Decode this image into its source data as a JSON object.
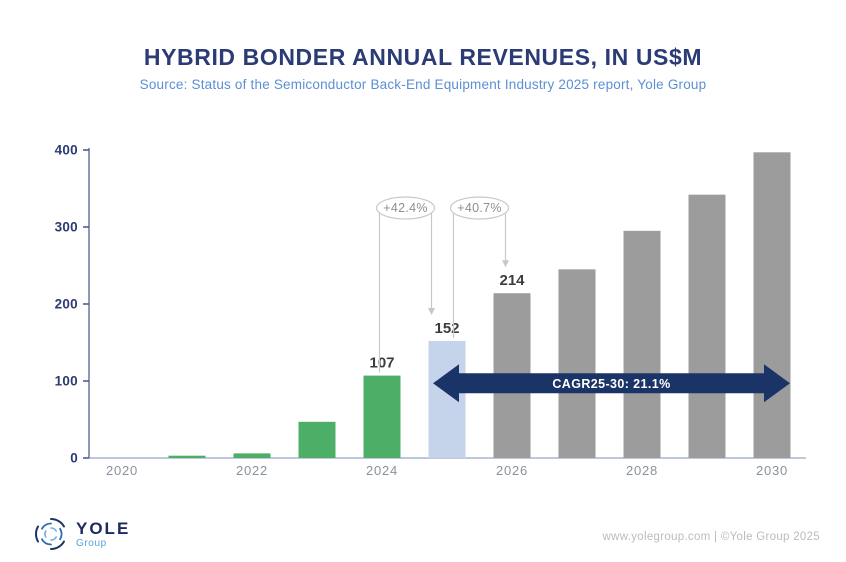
{
  "header": {
    "title": "HYBRID BONDER ANNUAL REVENUES, IN US$M",
    "subtitle": "Source: Status of the Semiconductor Back-End Equipment Industry 2025 report, Yole Group"
  },
  "chart_data": {
    "type": "bar",
    "title": "HYBRID BONDER ANNUAL REVENUES, IN US$M",
    "subtitle": "Source: Status of the Semiconductor Back-End Equipment Industry 2025 report, Yole Group",
    "unit": "US$M",
    "categories": [
      "2020",
      "2021",
      "2022",
      "2023",
      "2024",
      "2025",
      "2026",
      "2027",
      "2028",
      "2029",
      "2030"
    ],
    "values": [
      0,
      3,
      6,
      47,
      107,
      152,
      214,
      245,
      295,
      342,
      397
    ],
    "bar_groups": [
      "historical",
      "historical",
      "historical",
      "historical",
      "historical",
      "current",
      "forecast",
      "forecast",
      "forecast",
      "forecast",
      "forecast"
    ],
    "group_colors": {
      "historical": "#4dae68",
      "current": "#c6d4eb",
      "forecast": "#9c9c9c"
    },
    "value_labels": {
      "2024": "107",
      "2025": "152",
      "2026": "214"
    },
    "ylim": [
      0,
      400
    ],
    "yticks": [
      0,
      100,
      200,
      300,
      400
    ],
    "xtick_labels": [
      "2020",
      "2022",
      "2024",
      "2026",
      "2028",
      "2030"
    ],
    "grid": false,
    "legend": "none",
    "annotations": [
      {
        "label": "+42.4%",
        "from": "2024",
        "to": "2025"
      },
      {
        "label": "+40.7%",
        "from": "2025",
        "to": "2026"
      }
    ],
    "cagr_arrow": {
      "label": "CAGR25-30: 21.1%",
      "from": "2025",
      "to": "2030",
      "y_value": 97,
      "color": "#1b3467"
    }
  },
  "footer": {
    "logo_text": "YOLE",
    "logo_subtext": "Group",
    "credit": "www.yolegroup.com | ©Yole Group 2025"
  }
}
